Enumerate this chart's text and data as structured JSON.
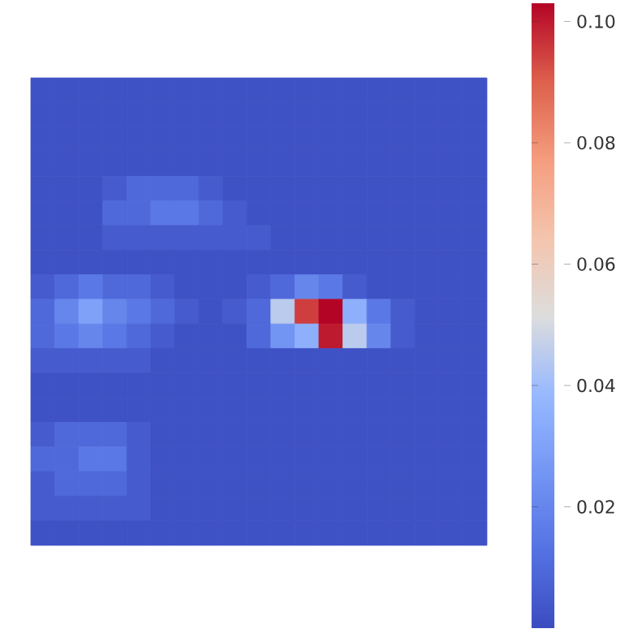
{
  "chart_data": {
    "type": "heatmap",
    "categories": [
      null,
      null,
      null,
      null,
      null,
      null,
      null,
      null,
      null,
      null,
      null,
      null,
      null,
      null,
      null,
      null,
      null,
      null,
      null
    ],
    "y_categories": [
      null,
      null,
      null,
      null,
      null,
      null,
      null,
      null,
      null,
      null,
      null,
      null,
      null,
      null,
      null,
      null,
      null,
      null,
      null
    ],
    "cells": [
      [
        0.002,
        0.002,
        0.002,
        0.002,
        0.002,
        0.002,
        0.002,
        0.002,
        0.002,
        0.002,
        0.002,
        0.002,
        0.002,
        0.002,
        0.002,
        0.002,
        0.002,
        0.002,
        0.002
      ],
      [
        0.002,
        0.002,
        0.002,
        0.002,
        0.002,
        0.002,
        0.002,
        0.002,
        0.002,
        0.002,
        0.002,
        0.002,
        0.002,
        0.002,
        0.002,
        0.002,
        0.002,
        0.002,
        0.002
      ],
      [
        0.002,
        0.002,
        0.002,
        0.002,
        0.002,
        0.002,
        0.002,
        0.002,
        0.002,
        0.002,
        0.002,
        0.002,
        0.002,
        0.002,
        0.002,
        0.002,
        0.002,
        0.002,
        0.002
      ],
      [
        0.002,
        0.002,
        0.002,
        0.002,
        0.002,
        0.002,
        0.002,
        0.002,
        0.002,
        0.002,
        0.002,
        0.002,
        0.002,
        0.002,
        0.002,
        0.002,
        0.002,
        0.002,
        0.002
      ],
      [
        0.002,
        0.002,
        0.002,
        0.005,
        0.01,
        0.01,
        0.01,
        0.005,
        0.002,
        0.002,
        0.002,
        0.002,
        0.002,
        0.002,
        0.002,
        0.002,
        0.002,
        0.002,
        0.002
      ],
      [
        0.002,
        0.002,
        0.002,
        0.01,
        0.01,
        0.015,
        0.015,
        0.01,
        0.005,
        0.002,
        0.002,
        0.002,
        0.002,
        0.002,
        0.002,
        0.002,
        0.002,
        0.002,
        0.002
      ],
      [
        0.002,
        0.002,
        0.002,
        0.005,
        0.005,
        0.005,
        0.005,
        0.005,
        0.005,
        0.005,
        0.002,
        0.002,
        0.002,
        0.002,
        0.002,
        0.002,
        0.002,
        0.002,
        0.002
      ],
      [
        0.002,
        0.002,
        0.002,
        0.002,
        0.002,
        0.002,
        0.002,
        0.002,
        0.002,
        0.002,
        0.002,
        0.002,
        0.002,
        0.002,
        0.002,
        0.002,
        0.002,
        0.002,
        0.002
      ],
      [
        0.005,
        0.01,
        0.015,
        0.01,
        0.01,
        0.005,
        0.002,
        0.002,
        0.002,
        0.005,
        0.01,
        0.02,
        0.015,
        0.005,
        0.002,
        0.002,
        0.002,
        0.002,
        0.002
      ],
      [
        0.01,
        0.02,
        0.03,
        0.02,
        0.015,
        0.01,
        0.005,
        0.002,
        0.005,
        0.01,
        0.045,
        0.095,
        0.103,
        0.035,
        0.015,
        0.005,
        0.002,
        0.002,
        0.002
      ],
      [
        0.01,
        0.015,
        0.02,
        0.015,
        0.01,
        0.005,
        0.002,
        0.002,
        0.002,
        0.01,
        0.025,
        0.035,
        0.1,
        0.045,
        0.02,
        0.005,
        0.002,
        0.002,
        0.002
      ],
      [
        0.005,
        0.005,
        0.005,
        0.005,
        0.005,
        0.002,
        0.002,
        0.002,
        0.002,
        0.002,
        0.002,
        0.002,
        0.002,
        0.002,
        0.002,
        0.002,
        0.002,
        0.002,
        0.002
      ],
      [
        0.002,
        0.002,
        0.002,
        0.002,
        0.002,
        0.002,
        0.002,
        0.002,
        0.002,
        0.002,
        0.002,
        0.002,
        0.002,
        0.002,
        0.002,
        0.002,
        0.002,
        0.002,
        0.002
      ],
      [
        0.002,
        0.002,
        0.002,
        0.002,
        0.002,
        0.002,
        0.002,
        0.002,
        0.002,
        0.002,
        0.002,
        0.002,
        0.002,
        0.002,
        0.002,
        0.002,
        0.002,
        0.002,
        0.002
      ],
      [
        0.005,
        0.01,
        0.01,
        0.01,
        0.005,
        0.002,
        0.002,
        0.002,
        0.002,
        0.002,
        0.002,
        0.002,
        0.002,
        0.002,
        0.002,
        0.002,
        0.002,
        0.002,
        0.002
      ],
      [
        0.01,
        0.01,
        0.015,
        0.015,
        0.005,
        0.002,
        0.002,
        0.002,
        0.002,
        0.002,
        0.002,
        0.002,
        0.002,
        0.002,
        0.002,
        0.002,
        0.002,
        0.002,
        0.002
      ],
      [
        0.005,
        0.01,
        0.01,
        0.01,
        0.005,
        0.002,
        0.002,
        0.002,
        0.002,
        0.002,
        0.002,
        0.002,
        0.002,
        0.002,
        0.002,
        0.002,
        0.002,
        0.002,
        0.002
      ],
      [
        0.005,
        0.005,
        0.005,
        0.005,
        0.005,
        0.002,
        0.002,
        0.002,
        0.002,
        0.002,
        0.002,
        0.002,
        0.002,
        0.002,
        0.002,
        0.002,
        0.002,
        0.002,
        0.002
      ],
      [
        0.002,
        0.002,
        0.002,
        0.002,
        0.002,
        0.002,
        0.002,
        0.002,
        0.002,
        0.002,
        0.002,
        0.002,
        0.002,
        0.002,
        0.002,
        0.002,
        0.002,
        0.002,
        0.002
      ]
    ],
    "clim": [
      0,
      0.103
    ],
    "cticks": [
      {
        "value": 0.02,
        "label": "0.02"
      },
      {
        "value": 0.04,
        "label": "0.04"
      },
      {
        "value": 0.06,
        "label": "0.06"
      },
      {
        "value": 0.08,
        "label": "0.08"
      },
      {
        "value": 0.1,
        "label": "0.10"
      }
    ]
  }
}
